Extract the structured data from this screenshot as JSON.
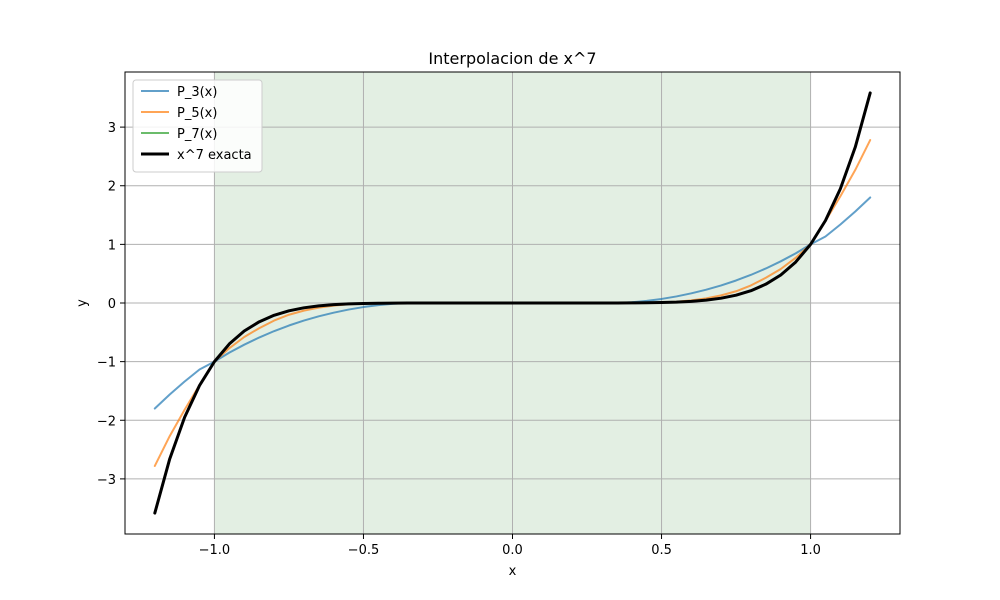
{
  "chart_data": {
    "type": "line",
    "title": "Interpolacion de x^7",
    "xlabel": "x",
    "ylabel": "y",
    "xlim": [
      -1.3,
      1.3
    ],
    "ylim": [
      -3.94,
      3.94
    ],
    "grid": true,
    "legend_position": "top-left",
    "shaded_region": {
      "x_from": -1.0,
      "x_to": 1.0,
      "color": "#e3efe3"
    },
    "x_ticks": [
      {
        "value": -1.0,
        "label": "−1.0"
      },
      {
        "value": -0.5,
        "label": "−0.5"
      },
      {
        "value": 0.0,
        "label": "0.0"
      },
      {
        "value": 0.5,
        "label": "0.5"
      },
      {
        "value": 1.0,
        "label": "1.0"
      }
    ],
    "y_ticks": [
      {
        "value": -3,
        "label": "−3"
      },
      {
        "value": -2,
        "label": "−2"
      },
      {
        "value": -1,
        "label": "−1"
      },
      {
        "value": 0,
        "label": "0"
      },
      {
        "value": 1,
        "label": "1"
      },
      {
        "value": 2,
        "label": "2"
      },
      {
        "value": 3,
        "label": "3"
      }
    ],
    "x": [
      -1.2,
      -1.15,
      -1.1,
      -1.05,
      -1.0,
      -0.95,
      -0.9,
      -0.85,
      -0.8,
      -0.75,
      -0.7,
      -0.65,
      -0.6,
      -0.55,
      -0.5,
      -0.45,
      -0.4,
      -0.35,
      -0.3,
      -0.25,
      -0.2,
      -0.15,
      -0.1,
      -0.05,
      0.0,
      0.05,
      0.1,
      0.15,
      0.2,
      0.25,
      0.3,
      0.35,
      0.4,
      0.45,
      0.5,
      0.55,
      0.6,
      0.65,
      0.7,
      0.75,
      0.8,
      0.85,
      0.9,
      0.95,
      1.0,
      1.05,
      1.1,
      1.15,
      1.2
    ],
    "series": [
      {
        "name": "P_3(x)",
        "color": "#1f77b4",
        "opacity": 0.7,
        "width": 2,
        "values": [
          -1.8,
          -1.561,
          -1.339,
          -1.134,
          -1.0,
          -0.847,
          -0.711,
          -0.589,
          -0.48,
          -0.384,
          -0.3,
          -0.227,
          -0.165,
          -0.112,
          -0.069,
          -0.036,
          -0.013,
          0.001,
          0.004,
          0.003,
          0.0,
          0.0,
          0.0,
          0.0,
          0.0,
          0.0,
          0.0,
          0.0,
          0.0,
          -0.003,
          -0.004,
          -0.001,
          0.013,
          0.036,
          0.069,
          0.112,
          0.165,
          0.227,
          0.3,
          0.384,
          0.48,
          0.589,
          0.711,
          0.847,
          1.0,
          1.134,
          1.339,
          1.561,
          1.8
        ]
      },
      {
        "name": "P_5(x)",
        "color": "#ff7f0e",
        "opacity": 0.7,
        "width": 2,
        "values": [
          -2.78,
          -2.27,
          -1.82,
          -1.4,
          -1.0,
          -0.77,
          -0.58,
          -0.43,
          -0.3,
          -0.2,
          -0.13,
          -0.08,
          -0.045,
          -0.022,
          -0.01,
          -0.004,
          -0.001,
          0.0,
          0.0,
          0.0,
          0.0,
          0.0,
          0.0,
          0.0,
          0.0,
          0.0,
          0.0,
          0.0,
          0.0,
          0.0,
          0.0,
          0.0,
          0.001,
          0.004,
          0.01,
          0.022,
          0.045,
          0.08,
          0.13,
          0.2,
          0.3,
          0.43,
          0.58,
          0.77,
          1.0,
          1.4,
          1.82,
          2.27,
          2.78
        ]
      },
      {
        "name": "P_7(x)",
        "color": "#2ca02c",
        "opacity": 0.7,
        "width": 2,
        "values": [
          -3.583,
          -2.66,
          -1.949,
          -1.407,
          -1.0,
          -0.698,
          -0.478,
          -0.321,
          -0.21,
          -0.133,
          -0.082,
          -0.049,
          -0.028,
          -0.015,
          -0.008,
          -0.004,
          -0.002,
          -0.001,
          0.0,
          0.0,
          0.0,
          0.0,
          0.0,
          0.0,
          0.0,
          0.0,
          0.0,
          0.0,
          0.0,
          0.0,
          0.0,
          0.001,
          0.002,
          0.004,
          0.008,
          0.015,
          0.028,
          0.049,
          0.082,
          0.133,
          0.21,
          0.321,
          0.478,
          0.698,
          1.0,
          1.407,
          1.949,
          2.66,
          3.583
        ]
      },
      {
        "name": "x^7 exacta",
        "color": "#000000",
        "opacity": 1,
        "width": 3,
        "values": [
          -3.583,
          -2.66,
          -1.949,
          -1.407,
          -1.0,
          -0.698,
          -0.478,
          -0.321,
          -0.21,
          -0.133,
          -0.082,
          -0.049,
          -0.028,
          -0.015,
          -0.008,
          -0.004,
          -0.002,
          -0.001,
          0.0,
          0.0,
          0.0,
          0.0,
          0.0,
          0.0,
          0.0,
          0.0,
          0.0,
          0.0,
          0.0,
          0.0,
          0.0,
          0.001,
          0.002,
          0.004,
          0.008,
          0.015,
          0.028,
          0.049,
          0.082,
          0.133,
          0.21,
          0.321,
          0.478,
          0.698,
          1.0,
          1.407,
          1.949,
          2.66,
          3.583
        ]
      }
    ]
  }
}
